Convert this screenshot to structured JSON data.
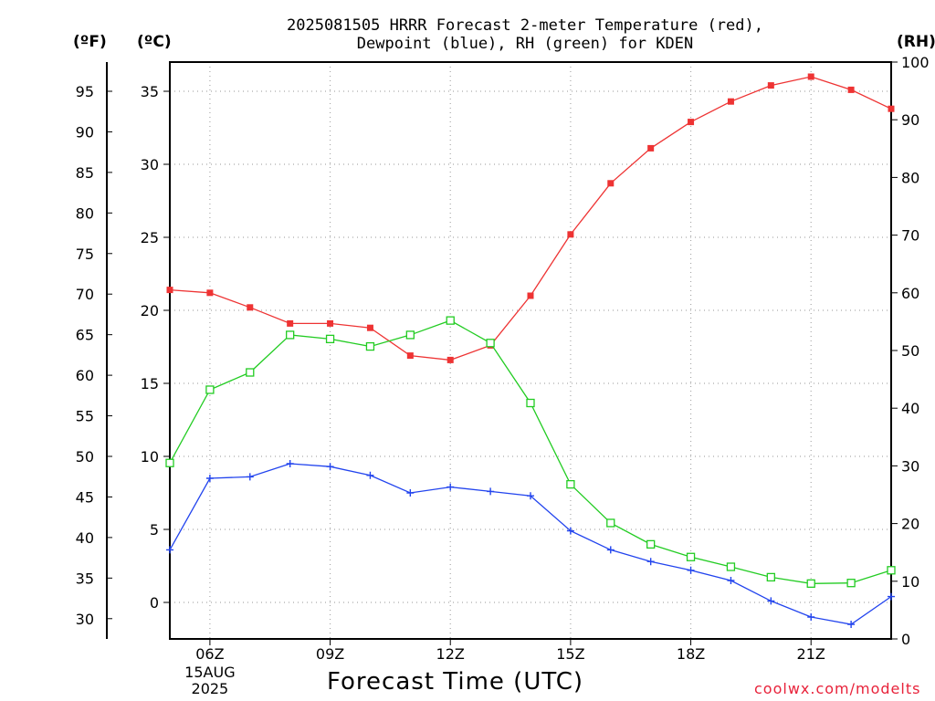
{
  "title_line1": "2025081505 HRRR Forecast 2-meter Temperature (red),",
  "title_line2": "Dewpoint (blue), RH (green) for KDEN",
  "units": {
    "fahrenheit": "(ºF)",
    "celsius": "(ºC)",
    "rh": "(RH)"
  },
  "xlabel": "Forecast Time (UTC)",
  "credit": "coolwx.com/modelts",
  "colors": {
    "temperature": "#ee3333",
    "dewpoint": "#2244ee",
    "rh": "#22cc22",
    "grid": "#aaaaaa"
  },
  "chart_data": {
    "type": "line",
    "x": [
      5,
      6,
      7,
      8,
      9,
      10,
      11,
      12,
      13,
      14,
      15,
      16,
      17,
      18,
      19,
      20,
      21,
      22,
      23
    ],
    "x_range": [
      5,
      23
    ],
    "x_ticks": [
      {
        "hour": 6,
        "label": "06Z",
        "date": "15AUG",
        "year": "2025"
      },
      {
        "hour": 9,
        "label": "09Z"
      },
      {
        "hour": 12,
        "label": "12Z"
      },
      {
        "hour": 15,
        "label": "15Z"
      },
      {
        "hour": 18,
        "label": "18Z"
      },
      {
        "hour": 21,
        "label": "21Z"
      }
    ],
    "y_left_c": {
      "range": [
        -2.5,
        37
      ],
      "ticks": [
        0,
        5,
        10,
        15,
        20,
        25,
        30,
        35
      ]
    },
    "y_left_f": {
      "ticks": [
        30,
        35,
        40,
        45,
        50,
        55,
        60,
        65,
        70,
        75,
        80,
        85,
        90,
        95
      ]
    },
    "y_right_rh": {
      "range": [
        0,
        100
      ],
      "ticks": [
        0,
        10,
        20,
        30,
        40,
        50,
        60,
        70,
        80,
        90,
        100
      ]
    },
    "grid": true,
    "series": [
      {
        "name": "Temperature",
        "axis": "celsius",
        "marker": "filled-square",
        "values": [
          21.4,
          21.2,
          20.2,
          19.1,
          19.1,
          18.8,
          16.9,
          16.6,
          17.6,
          21.0,
          25.2,
          28.7,
          31.1,
          32.9,
          34.3,
          35.4,
          36.0,
          35.1,
          33.8
        ]
      },
      {
        "name": "Dewpoint",
        "axis": "celsius",
        "marker": "plus",
        "values": [
          3.6,
          8.5,
          8.6,
          9.5,
          9.3,
          8.7,
          7.5,
          7.9,
          7.6,
          7.3,
          4.9,
          3.6,
          2.8,
          2.2,
          1.5,
          0.1,
          -1.0,
          -1.5,
          0.4
        ]
      },
      {
        "name": "RH",
        "axis": "rh",
        "marker": "open-square",
        "values": [
          30.5,
          43.2,
          46.2,
          52.7,
          52.0,
          50.7,
          52.7,
          55.2,
          51.3,
          40.9,
          26.8,
          20.1,
          16.4,
          14.2,
          12.5,
          10.7,
          9.6,
          9.7,
          11.9
        ]
      }
    ]
  }
}
